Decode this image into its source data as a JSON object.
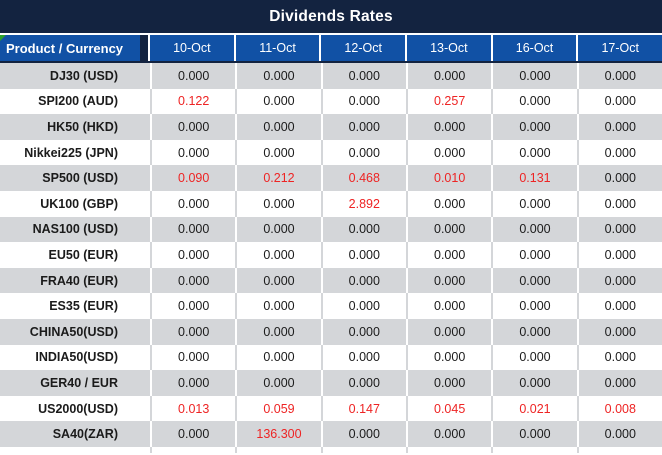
{
  "title": "Dividends Rates",
  "table": {
    "corner_header": "Product / Currency",
    "date_headers": [
      "10-Oct",
      "11-Oct",
      "12-Oct",
      "13-Oct",
      "16-Oct",
      "17-Oct"
    ],
    "rows": [
      {
        "product": "DJ30 (USD)",
        "values": [
          "0.000",
          "0.000",
          "0.000",
          "0.000",
          "0.000",
          "0.000"
        ]
      },
      {
        "product": "SPI200 (AUD)",
        "values": [
          "0.122",
          "0.000",
          "0.000",
          "0.257",
          "0.000",
          "0.000"
        ]
      },
      {
        "product": "HK50 (HKD)",
        "values": [
          "0.000",
          "0.000",
          "0.000",
          "0.000",
          "0.000",
          "0.000"
        ]
      },
      {
        "product": "Nikkei225 (JPN)",
        "values": [
          "0.000",
          "0.000",
          "0.000",
          "0.000",
          "0.000",
          "0.000"
        ]
      },
      {
        "product": "SP500 (USD)",
        "values": [
          "0.090",
          "0.212",
          "0.468",
          "0.010",
          "0.131",
          "0.000"
        ]
      },
      {
        "product": "UK100 (GBP)",
        "values": [
          "0.000",
          "0.000",
          "2.892",
          "0.000",
          "0.000",
          "0.000"
        ]
      },
      {
        "product": "NAS100 (USD)",
        "values": [
          "0.000",
          "0.000",
          "0.000",
          "0.000",
          "0.000",
          "0.000"
        ]
      },
      {
        "product": "EU50 (EUR)",
        "values": [
          "0.000",
          "0.000",
          "0.000",
          "0.000",
          "0.000",
          "0.000"
        ]
      },
      {
        "product": "FRA40 (EUR)",
        "values": [
          "0.000",
          "0.000",
          "0.000",
          "0.000",
          "0.000",
          "0.000"
        ]
      },
      {
        "product": "ES35 (EUR)",
        "values": [
          "0.000",
          "0.000",
          "0.000",
          "0.000",
          "0.000",
          "0.000"
        ]
      },
      {
        "product": "CHINA50(USD)",
        "values": [
          "0.000",
          "0.000",
          "0.000",
          "0.000",
          "0.000",
          "0.000"
        ]
      },
      {
        "product": "INDIA50(USD)",
        "values": [
          "0.000",
          "0.000",
          "0.000",
          "0.000",
          "0.000",
          "0.000"
        ]
      },
      {
        "product": "GER40 / EUR",
        "values": [
          "0.000",
          "0.000",
          "0.000",
          "0.000",
          "0.000",
          "0.000"
        ]
      },
      {
        "product": "US2000(USD)",
        "values": [
          "0.013",
          "0.059",
          "0.147",
          "0.045",
          "0.021",
          "0.008"
        ]
      },
      {
        "product": "SA40(ZAR)",
        "values": [
          "0.000",
          "136.300",
          "0.000",
          "0.000",
          "0.000",
          "0.000"
        ]
      }
    ],
    "zero_value": "0.000"
  },
  "colors": {
    "navy": "#132340",
    "blue": "#1151A5",
    "grayrow": "#D4D6D9",
    "red": "#EE2424",
    "text": "#1B1B1B",
    "green": "#2BA02B"
  }
}
